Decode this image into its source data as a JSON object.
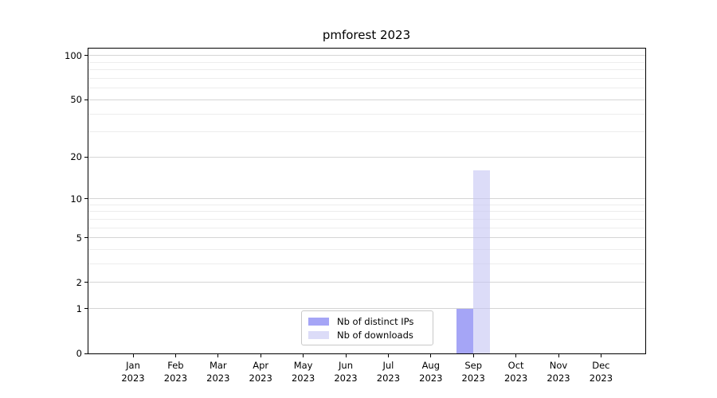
{
  "figure": {
    "background": "#ffffff"
  },
  "chart_data": {
    "type": "bar",
    "title": "pmforest 2023",
    "x_categories": [
      "Jan",
      "Feb",
      "Mar",
      "Apr",
      "May",
      "Jun",
      "Jul",
      "Aug",
      "Sep",
      "Oct",
      "Nov",
      "Dec"
    ],
    "x_year_label": "2023",
    "y_scale": "log1p (symlog-like, linear 0-1 then logarithmic)",
    "y_major_ticks": [
      100,
      50,
      20,
      10,
      5,
      2,
      1,
      0
    ],
    "y_minor_ticks": [
      3,
      4,
      6,
      7,
      8,
      9,
      30,
      40,
      60,
      70,
      80,
      90
    ],
    "ylim": [
      0,
      113
    ],
    "grid": "horizontal major and minor gridlines",
    "legend_position": "lower center inside axes",
    "series": [
      {
        "name": "Nb of distinct IPs",
        "color": "#6969f0",
        "alpha": 0.6,
        "values": [
          0,
          0,
          0,
          0,
          0,
          0,
          0,
          0,
          1,
          0,
          0,
          0
        ]
      },
      {
        "name": "Nb of downloads",
        "color": "#c5c5f4",
        "alpha": 0.6,
        "values": [
          0,
          0,
          0,
          0,
          0,
          0,
          0,
          0,
          16,
          0,
          0,
          0
        ]
      }
    ]
  },
  "colors": {
    "grid_major": "#d5d5d5",
    "grid_minor": "#ededed",
    "spine": "#000000",
    "tick_label": "#000000",
    "legend_border": "#c8c8c8",
    "legend_background": "#ffffff"
  }
}
